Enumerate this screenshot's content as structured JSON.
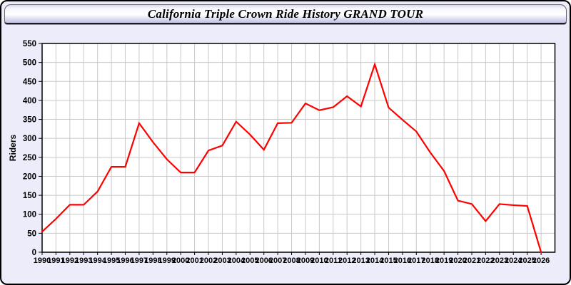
{
  "window": {
    "title": "California Triple Crown Ride History GRAND TOUR"
  },
  "colors": {
    "window_bg": "#ECECFA",
    "outer_border": "#000000",
    "plot_bg": "#FFFFFF",
    "grid": "#C9C9C9",
    "axis": "#000000",
    "tick_label": "#000000",
    "series_line": "#FF0000"
  },
  "chart_data": {
    "type": "line",
    "title": "California Triple Crown Ride History GRAND TOUR",
    "xlabel": "",
    "ylabel": "Riders",
    "x": [
      1990,
      1991,
      1992,
      1993,
      1994,
      1995,
      1996,
      1997,
      1998,
      1999,
      2000,
      2001,
      2002,
      2003,
      2004,
      2005,
      2006,
      2007,
      2008,
      2009,
      2010,
      2011,
      2012,
      2013,
      2014,
      2015,
      2016,
      2017,
      2018,
      2019,
      2020,
      2021,
      2022,
      2023,
      2024,
      2025,
      2026
    ],
    "series": [
      {
        "name": "Riders",
        "color": "#FF0000",
        "values": [
          54,
          88,
          125,
          125,
          160,
          225,
          225,
          340,
          290,
          245,
          210,
          210,
          268,
          281,
          344,
          310,
          270,
          340,
          341,
          392,
          374,
          382,
          411,
          384,
          495,
          381,
          349,
          318,
          263,
          214,
          136,
          127,
          82,
          127,
          124,
          122,
          0
        ]
      }
    ],
    "ylim": [
      0,
      550
    ],
    "ytick_step": 50,
    "xlim": [
      1990,
      2027
    ],
    "grid": true,
    "legend_position": "none"
  }
}
